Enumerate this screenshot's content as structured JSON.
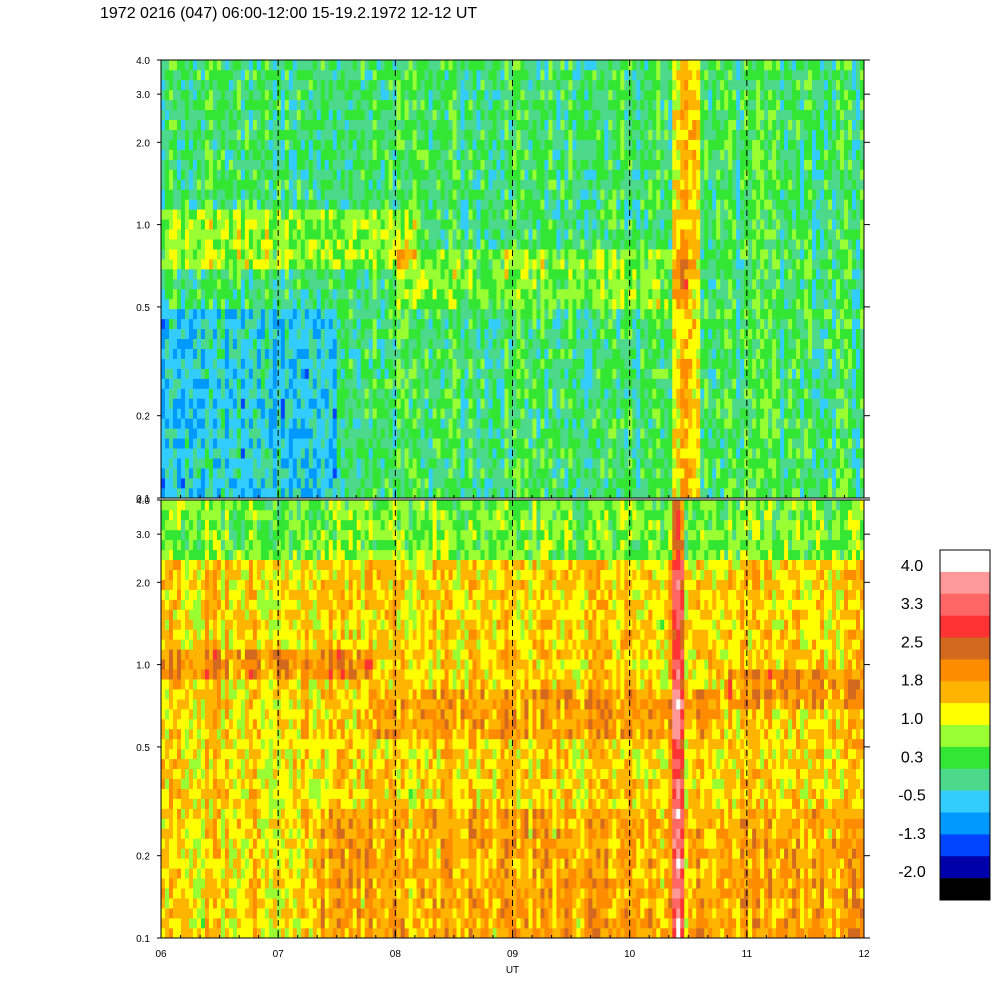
{
  "title": "1972 0216 (047) 06:00-12:00 15-19.2.1972  12-12 UT",
  "chart_data": [
    {
      "type": "heatmap",
      "panel": "upper",
      "y_scale": "log",
      "ylim": [
        0.1,
        4.0
      ],
      "yticks": [
        {
          "value": 0.1,
          "label": "0.1"
        },
        {
          "value": 0.2,
          "label": "0.2"
        },
        {
          "value": 0.5,
          "label": "0.5"
        },
        {
          "value": 1.0,
          "label": "1.0"
        },
        {
          "value": 2.0,
          "label": "2.0"
        },
        {
          "value": 3.0,
          "label": "3.0"
        },
        {
          "value": 4.0,
          "label": "4.0"
        }
      ],
      "xlim": [
        6,
        12
      ],
      "x_gridlines": [
        7,
        8,
        9,
        10,
        11
      ],
      "grid": "dashed vertical lines at each hour",
      "dominant_range": [
        -0.5,
        1.0
      ],
      "features": [
        {
          "description": "enhanced band near 0.8-1.0 between 06 and 08 h",
          "value": 1.0
        },
        {
          "description": "bright vertical burst near 10.4-10.6 h",
          "value": 1.5
        }
      ]
    },
    {
      "type": "heatmap",
      "panel": "lower",
      "y_scale": "log",
      "ylim": [
        0.1,
        4.0
      ],
      "yticks": [
        {
          "value": 0.1,
          "label": "0.1"
        },
        {
          "value": 0.2,
          "label": "0.2"
        },
        {
          "value": 0.5,
          "label": "0.5"
        },
        {
          "value": 1.0,
          "label": "1.0"
        },
        {
          "value": 2.0,
          "label": "2.0"
        },
        {
          "value": 3.0,
          "label": "3.0"
        },
        {
          "value": 4.0,
          "label": "4.0"
        }
      ],
      "xlim": [
        6,
        12
      ],
      "xticks": [
        {
          "value": 6,
          "label": "06"
        },
        {
          "value": 7,
          "label": "07"
        },
        {
          "value": 8,
          "label": "08"
        },
        {
          "value": 9,
          "label": "09"
        },
        {
          "value": 10,
          "label": "10"
        },
        {
          "value": 11,
          "label": "11"
        },
        {
          "value": 12,
          "label": "12"
        }
      ],
      "xlabel": "UT",
      "x_gridlines": [
        7,
        8,
        9,
        10,
        11
      ],
      "grid": "dashed vertical lines at each hour",
      "dominant_range": [
        1.0,
        2.0
      ],
      "features": [
        {
          "description": "enhanced band near 0.9-1.0 between 06 and 07.5 h",
          "value": 2.0
        },
        {
          "description": "intense burst near 10.4-10.5 h extending to lowest frequencies",
          "value": 3.0
        }
      ]
    }
  ],
  "colorbar": {
    "levels": [
      {
        "label": "",
        "color": "#ffffff"
      },
      {
        "label": "",
        "color": "#ff9999"
      },
      {
        "label": "",
        "color": "#ff6666"
      },
      {
        "label": "",
        "color": "#ff3333"
      },
      {
        "label": "",
        "color": "#d2691e"
      },
      {
        "label": "",
        "color": "#ff8c00"
      },
      {
        "label": "",
        "color": "#ffb400"
      },
      {
        "label": "",
        "color": "#ffff00"
      },
      {
        "label": "",
        "color": "#99ff33"
      },
      {
        "label": "",
        "color": "#33e633"
      },
      {
        "label": "",
        "color": "#4dd98c"
      },
      {
        "label": "",
        "color": "#33ccff"
      },
      {
        "label": "",
        "color": "#0099ff"
      },
      {
        "label": "",
        "color": "#0044ff"
      },
      {
        "label": "",
        "color": "#0000aa"
      },
      {
        "label": "",
        "color": "#000000"
      }
    ],
    "labels": [
      "4.0",
      "3.3",
      "2.5",
      "1.8",
      "1.0",
      "0.3",
      "-0.5",
      "-1.3",
      "-2.0"
    ]
  },
  "colors": {
    "upper_base": "#33e633",
    "lower_base": "#ffb400",
    "grid_dash": "#000000"
  }
}
